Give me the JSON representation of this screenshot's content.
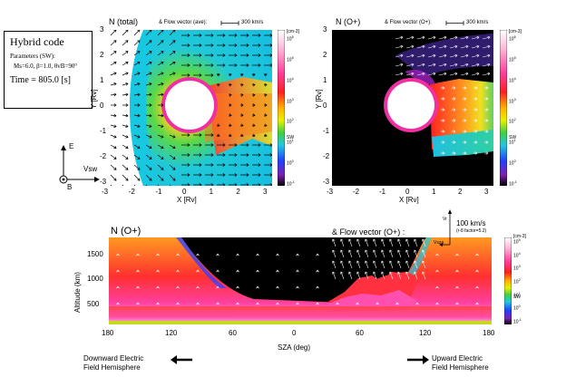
{
  "info_box": {
    "title": "Hybrid code",
    "params_label": "Parameters (SW):",
    "params_values": "Ms=6.0, β=1.0, θvB=90°",
    "time": "Time = 805.0 [s]"
  },
  "axes_diagram": {
    "e_label": "E",
    "vsw_label": "Vsw",
    "b_label": "B"
  },
  "panel_left": {
    "title": "N (total)",
    "flow_label": "& Flow vector (ave):",
    "scale_label": "300 km/s",
    "xlabel": "X [Rv]",
    "ylabel": "Y [Rv]",
    "x_ticks": [
      "-3",
      "-2",
      "-1",
      "0",
      "1",
      "2",
      "3"
    ],
    "y_ticks": [
      "3",
      "2",
      "1",
      "0",
      "-1",
      "-2",
      "-3"
    ],
    "colorbar_unit": "[cm-3]",
    "colorbar_ticks": [
      "10^6",
      "10^5",
      "10^4",
      "10^3",
      "10^2",
      "10^1",
      "10^0",
      "10^-1"
    ],
    "sw_label": "SW"
  },
  "panel_right": {
    "title": "N (O+)",
    "flow_label": "& Flow vector (O+):",
    "scale_label": "300 km/s",
    "xlabel": "X [Rv]",
    "ylabel": "Y [Rv]",
    "x_ticks": [
      "-3",
      "-2",
      "-1",
      "0",
      "1",
      "2",
      "3"
    ],
    "y_ticks": [
      "3",
      "2",
      "1",
      "0",
      "-1",
      "-2",
      "-3"
    ],
    "colorbar_unit": "[cm-3]",
    "colorbar_ticks": [
      "10^6",
      "10^5",
      "10^4",
      "10^3",
      "10^2",
      "10^1",
      "10^0",
      "10^-1"
    ],
    "sw_label": "SW"
  },
  "panel_bottom": {
    "title": "N (O+)",
    "flow_label": "& Flow vector (O+) :",
    "scale_label": "100 km/s",
    "scale_sub": "(r-8 factor=5.2)",
    "vr_label": "Vr",
    "vsza_label": "Vsza",
    "xlabel": "SZA (deg)",
    "ylabel": "Altitude (km)",
    "x_ticks": [
      "180",
      "120",
      "60",
      "0",
      "60",
      "120",
      "180"
    ],
    "y_ticks": [
      "1500",
      "1000",
      "500"
    ],
    "colorbar_unit": "[cm-3]",
    "colorbar_ticks": [
      "10^5",
      "10^4",
      "10^3",
      "10^2",
      "10^1",
      "10^0",
      "10^-1"
    ],
    "sw_label": "SW",
    "left_hemisphere_line1": "Downward Electric",
    "left_hemisphere_line2": "Field Hemisphere",
    "right_hemisphere_line1": "Upward Electric",
    "right_hemisphere_line2": "Field Hemisphere"
  }
}
